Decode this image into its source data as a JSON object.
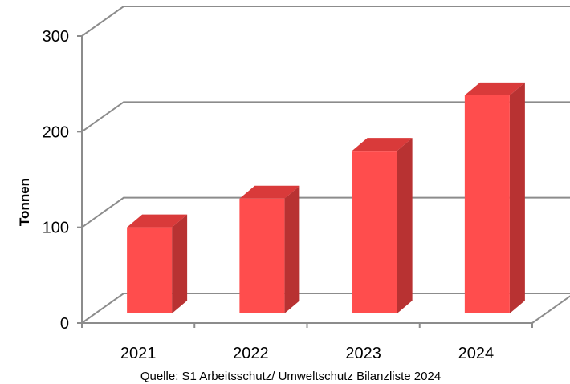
{
  "chart_data": {
    "type": "bar",
    "categories": [
      "2021",
      "2022",
      "2023",
      "2024"
    ],
    "values": [
      90,
      120,
      170,
      228
    ],
    "ylabel": "Tonnen",
    "ylim": [
      0,
      300
    ],
    "yticks": [
      "0",
      "100",
      "200",
      "300"
    ],
    "grid": true,
    "bar_color": "#ff4d4d",
    "bar_side_color": "#b83232",
    "bar_top_color": "#d93a3a",
    "source_note": "Quelle: S1 Arbeitsschutz/ Umweltschutz Bilanzliste 2024"
  }
}
